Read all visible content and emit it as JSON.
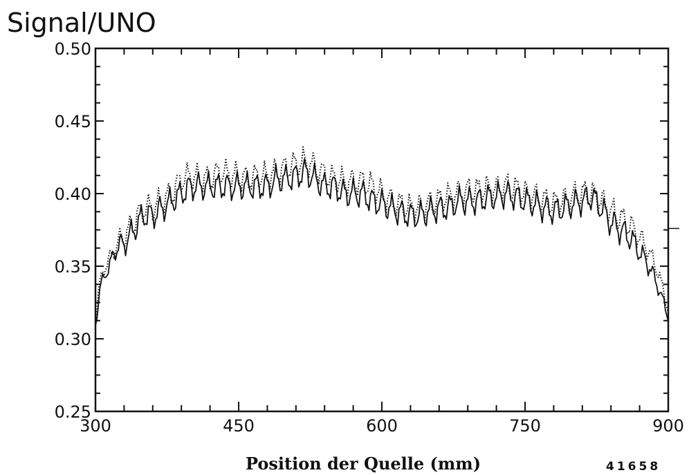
{
  "chart_data": {
    "type": "line",
    "title": "Signal/UNO",
    "xlabel": "Position der Quelle (mm)",
    "ylabel": "",
    "figure_number": "41658",
    "xlim": [
      300,
      900
    ],
    "ylim": [
      0.25,
      0.5
    ],
    "x_ticks": [
      300,
      450,
      600,
      750,
      900
    ],
    "x_tick_labels": [
      "300",
      "450",
      "600",
      "750",
      "900"
    ],
    "y_ticks": [
      0.25,
      0.3,
      0.35,
      0.4,
      0.45,
      0.5
    ],
    "y_tick_labels": [
      "0.25",
      "0.30",
      "0.35",
      "0.40",
      "0.45",
      "0.50"
    ],
    "grid": false,
    "series": [
      {
        "style": "solid",
        "color": "#111111",
        "x": [
          300,
          305,
          310,
          315,
          320,
          325,
          330,
          335,
          340,
          345,
          350,
          360,
          370,
          380,
          390,
          400,
          410,
          420,
          430,
          440,
          450,
          460,
          470,
          480,
          490,
          500,
          510,
          520,
          530,
          540,
          550,
          560,
          570,
          580,
          590,
          600,
          610,
          620,
          630,
          640,
          650,
          660,
          670,
          680,
          690,
          700,
          710,
          720,
          730,
          740,
          750,
          760,
          770,
          780,
          790,
          800,
          810,
          820,
          830,
          840,
          850,
          860,
          870,
          880,
          890,
          900
        ],
        "y": [
          0.31,
          0.335,
          0.345,
          0.35,
          0.36,
          0.365,
          0.365,
          0.37,
          0.375,
          0.38,
          0.385,
          0.385,
          0.39,
          0.395,
          0.4,
          0.405,
          0.405,
          0.405,
          0.405,
          0.405,
          0.405,
          0.405,
          0.405,
          0.405,
          0.41,
          0.41,
          0.412,
          0.415,
          0.41,
          0.405,
          0.405,
          0.4,
          0.4,
          0.4,
          0.395,
          0.393,
          0.39,
          0.387,
          0.385,
          0.385,
          0.388,
          0.39,
          0.39,
          0.395,
          0.395,
          0.395,
          0.397,
          0.398,
          0.4,
          0.398,
          0.395,
          0.393,
          0.39,
          0.388,
          0.39,
          0.393,
          0.395,
          0.398,
          0.39,
          0.38,
          0.375,
          0.37,
          0.36,
          0.35,
          0.335,
          0.315
        ]
      },
      {
        "style": "dotted",
        "color": "#111111",
        "x": [
          300,
          305,
          310,
          315,
          320,
          325,
          330,
          335,
          340,
          345,
          350,
          360,
          370,
          380,
          390,
          400,
          410,
          420,
          430,
          440,
          450,
          460,
          470,
          480,
          490,
          500,
          510,
          520,
          530,
          540,
          550,
          560,
          570,
          580,
          590,
          600,
          610,
          620,
          630,
          640,
          650,
          660,
          670,
          680,
          690,
          700,
          710,
          720,
          730,
          740,
          750,
          760,
          770,
          780,
          790,
          800,
          810,
          820,
          830,
          840,
          850,
          860,
          870,
          880,
          890,
          900
        ],
        "y": [
          0.315,
          0.34,
          0.35,
          0.355,
          0.362,
          0.368,
          0.37,
          0.375,
          0.38,
          0.385,
          0.39,
          0.39,
          0.395,
          0.4,
          0.41,
          0.412,
          0.41,
          0.41,
          0.415,
          0.413,
          0.412,
          0.41,
          0.412,
          0.412,
          0.415,
          0.418,
          0.42,
          0.422,
          0.418,
          0.413,
          0.41,
          0.408,
          0.408,
          0.408,
          0.405,
          0.4,
          0.395,
          0.392,
          0.39,
          0.39,
          0.393,
          0.395,
          0.398,
          0.4,
          0.402,
          0.402,
          0.403,
          0.403,
          0.405,
          0.403,
          0.4,
          0.398,
          0.395,
          0.393,
          0.395,
          0.398,
          0.4,
          0.4,
          0.395,
          0.388,
          0.383,
          0.378,
          0.37,
          0.36,
          0.345,
          0.32
        ]
      }
    ]
  }
}
